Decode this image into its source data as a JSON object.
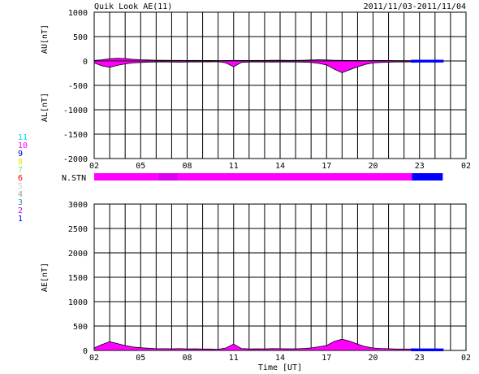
{
  "title": "Quik Look AE(11)",
  "date_range": "2011/11/03-2011/11/04",
  "x_axis_label": "Time [UT]",
  "station_legend": [
    {
      "label": "11",
      "color": "#00e0e0"
    },
    {
      "label": "10",
      "color": "#ff00ff"
    },
    {
      "label": "9",
      "color": "#0000cc"
    },
    {
      "label": "8",
      "color": "#e8e800"
    },
    {
      "label": "7",
      "color": "#80e080"
    },
    {
      "label": "6",
      "color": "#ff0000"
    },
    {
      "label": "5",
      "color": "#d0d0d0"
    },
    {
      "label": "4",
      "color": "#9a9a9a"
    },
    {
      "label": "3",
      "color": "#2aa0a0"
    },
    {
      "label": "2",
      "color": "#cc00cc"
    },
    {
      "label": "1",
      "color": "#0000ff"
    }
  ],
  "nstn": {
    "label": "N.STN",
    "segments": [
      {
        "from": 0.0,
        "to": 4.1,
        "stations": 10,
        "color": "#ff00ff"
      },
      {
        "from": 4.1,
        "to": 5.4,
        "stations": 10,
        "color": "#dd00ee"
      },
      {
        "from": 5.4,
        "to": 20.5,
        "stations": 10,
        "color": "#ff00ff"
      },
      {
        "from": 20.5,
        "to": 22.5,
        "stations": 9,
        "color": "#0000ff"
      }
    ]
  },
  "chart_data": [
    {
      "type": "area",
      "name": "AU/AL panel",
      "ylabel_upper": "AU[nT]",
      "ylabel_lower": "AL[nT]",
      "ylim": [
        -2000,
        1000
      ],
      "yticks": [
        1000,
        500,
        0,
        -500,
        -1000,
        -1500,
        -2000
      ],
      "xlim": [
        0,
        24
      ],
      "xticks": [
        "02",
        "05",
        "08",
        "11",
        "14",
        "17",
        "20",
        "23",
        "02"
      ],
      "x_hours_from_start": [
        0,
        0.5,
        1,
        1.5,
        2,
        2.5,
        3,
        3.5,
        4,
        4.5,
        5,
        5.5,
        6,
        6.5,
        7,
        7.5,
        8,
        8.5,
        9,
        9.5,
        10,
        10.5,
        11,
        11.5,
        12,
        12.5,
        13,
        13.5,
        14,
        14.5,
        15,
        15.5,
        16,
        16.5,
        17,
        17.5,
        18,
        18.5,
        19,
        19.5,
        20,
        20.5,
        21,
        21.5,
        22,
        22.5
      ],
      "series": [
        {
          "name": "AU",
          "color": "#ff00ff",
          "values": [
            10,
            25,
            45,
            55,
            50,
            35,
            25,
            20,
            15,
            15,
            12,
            12,
            10,
            12,
            10,
            10,
            8,
            10,
            12,
            10,
            10,
            12,
            10,
            15,
            15,
            12,
            12,
            15,
            20,
            25,
            20,
            15,
            12,
            10,
            10,
            8,
            10,
            10,
            10,
            8,
            8,
            8,
            8,
            8,
            8,
            8
          ]
        },
        {
          "name": "AL",
          "color": "#ff00ff",
          "values": [
            -40,
            -100,
            -130,
            -90,
            -60,
            -40,
            -30,
            -25,
            -20,
            -20,
            -20,
            -25,
            -20,
            -20,
            -18,
            -18,
            -15,
            -40,
            -120,
            -30,
            -20,
            -20,
            -20,
            -22,
            -20,
            -20,
            -20,
            -25,
            -30,
            -50,
            -80,
            -170,
            -240,
            -180,
            -120,
            -70,
            -40,
            -30,
            -25,
            -20,
            -20,
            -18,
            -15,
            -15,
            -15,
            -15
          ]
        }
      ]
    },
    {
      "type": "area",
      "name": "AE panel",
      "ylabel": "AE[nT]",
      "ylim": [
        0,
        3000
      ],
      "yticks": [
        3000,
        2500,
        2000,
        1500,
        1000,
        500,
        0
      ],
      "xlim": [
        0,
        24
      ],
      "xticks": [
        "02",
        "05",
        "08",
        "11",
        "14",
        "17",
        "20",
        "23",
        "02"
      ],
      "xlabel": "Time [UT]",
      "x_hours_from_start": [
        0,
        0.5,
        1,
        1.5,
        2,
        2.5,
        3,
        3.5,
        4,
        4.5,
        5,
        5.5,
        6,
        6.5,
        7,
        7.5,
        8,
        8.5,
        9,
        9.5,
        10,
        10.5,
        11,
        11.5,
        12,
        12.5,
        13,
        13.5,
        14,
        14.5,
        15,
        15.5,
        16,
        16.5,
        17,
        17.5,
        18,
        18.5,
        19,
        19.5,
        20,
        20.5,
        21,
        21.5,
        22,
        22.5
      ],
      "series": [
        {
          "name": "AE",
          "color": "#ff00ff",
          "values": [
            50,
            120,
            180,
            140,
            100,
            70,
            55,
            45,
            35,
            35,
            32,
            37,
            30,
            32,
            28,
            28,
            23,
            50,
            130,
            40,
            30,
            32,
            30,
            37,
            35,
            32,
            32,
            40,
            50,
            75,
            100,
            185,
            230,
            190,
            130,
            78,
            50,
            40,
            35,
            28,
            28,
            26,
            23,
            23,
            23,
            23
          ]
        }
      ]
    }
  ]
}
